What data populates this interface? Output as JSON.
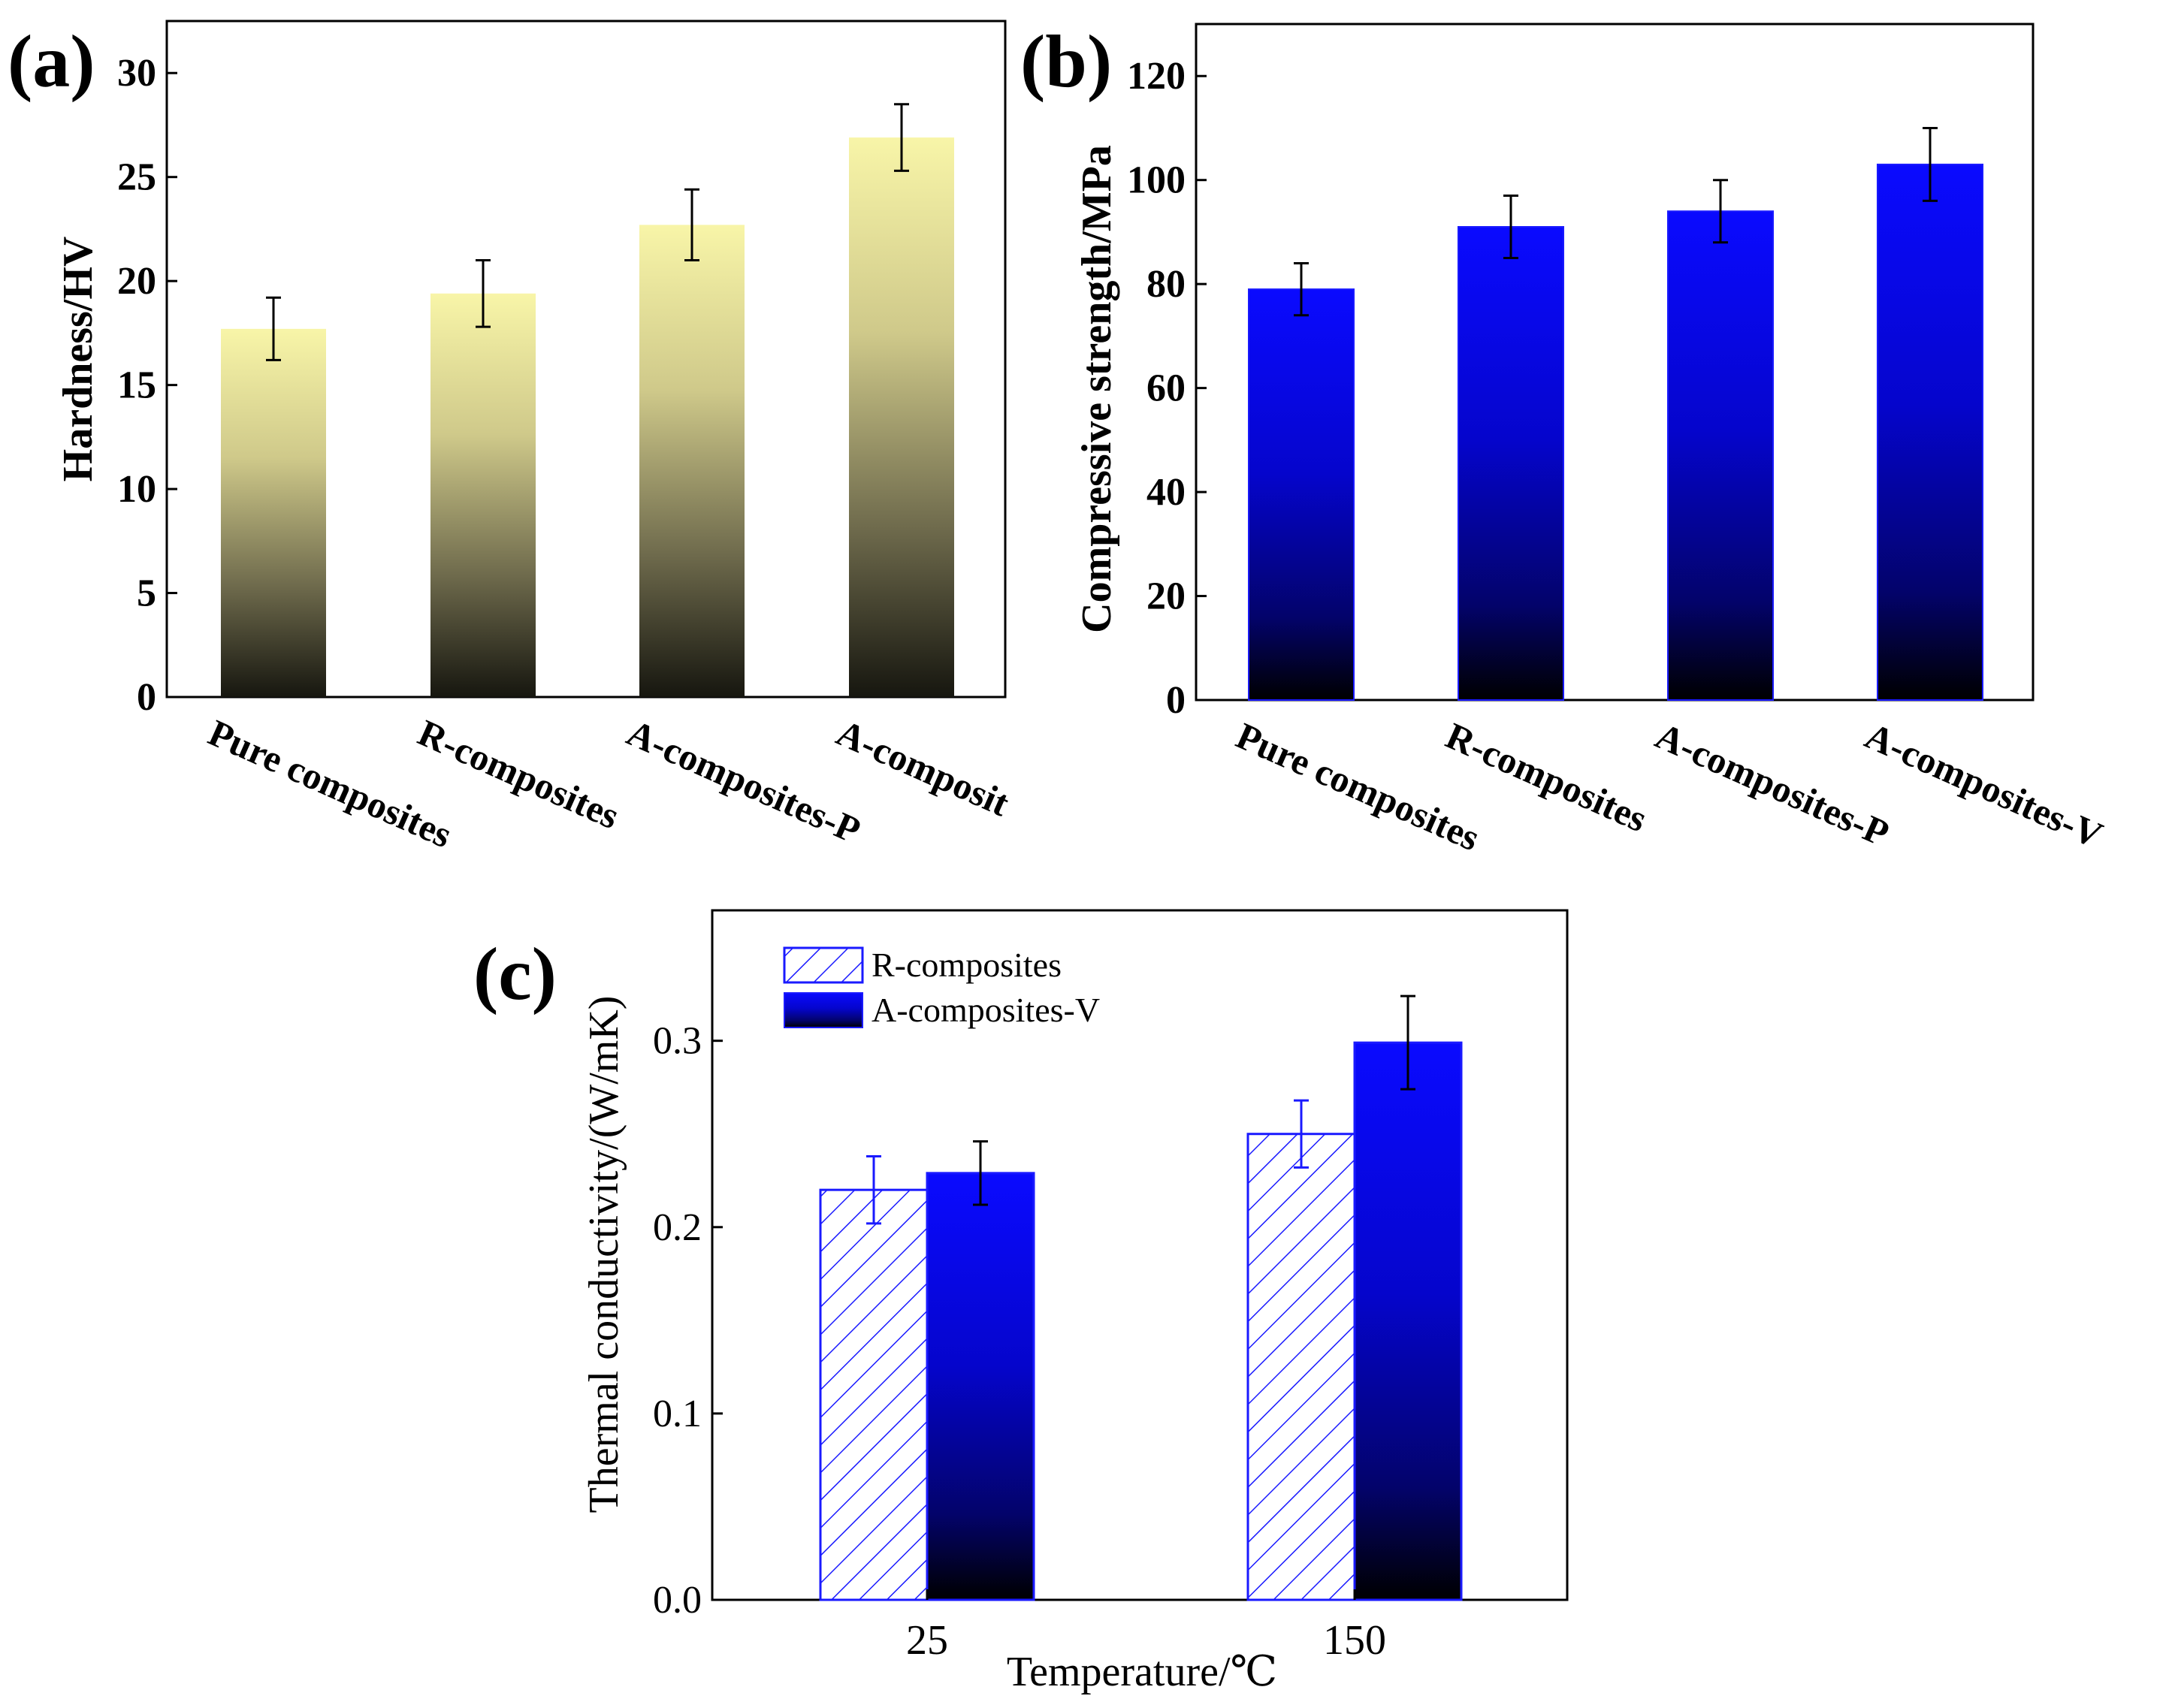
{
  "chart_data": [
    {
      "panel_label": "(a)",
      "type": "bar",
      "title": "",
      "xlabel": "",
      "ylabel": "Hardness/HV",
      "ylim": [
        0,
        32.5
      ],
      "yticks": [
        "0",
        "5",
        "10",
        "15",
        "20",
        "25",
        "30"
      ],
      "ytick_values": [
        0,
        5,
        10,
        15,
        20,
        25,
        30
      ],
      "categories": [
        "Pure composites",
        "R-composites",
        "A-composites-P",
        "A-composit"
      ],
      "values": [
        17.7,
        19.4,
        22.7,
        26.9
      ],
      "errors": [
        1.5,
        1.6,
        1.7,
        1.6
      ],
      "bar_color_top": "#f8f5a8",
      "bar_color_bottom": "#1a1a12",
      "grid": false
    },
    {
      "panel_label": "(b)",
      "type": "bar",
      "title": "",
      "xlabel": "",
      "ylabel": "Compressive strength/MPa",
      "ylim": [
        0,
        130
      ],
      "yticks": [
        "0",
        "20",
        "40",
        "60",
        "80",
        "100",
        "120"
      ],
      "ytick_values": [
        0,
        20,
        40,
        60,
        80,
        100,
        120
      ],
      "categories": [
        "Pure composites",
        "R-composites",
        "A-composites-P",
        "A-composites-V"
      ],
      "values": [
        79,
        91,
        94,
        103
      ],
      "errors": [
        5,
        6,
        6,
        7
      ],
      "bar_color_top": "#0a0aff",
      "bar_color_bottom": "#000000",
      "grid": false
    },
    {
      "panel_label": "(c)",
      "type": "bar",
      "title": "",
      "xlabel": "Temperature/℃",
      "ylabel": "Thermal conductivity/(W/mK)",
      "ylim": [
        0,
        0.37
      ],
      "yticks": [
        "0.0",
        "0.1",
        "0.2",
        "0.3"
      ],
      "ytick_values": [
        0.0,
        0.1,
        0.2,
        0.3
      ],
      "categories": [
        "25",
        "150"
      ],
      "legend_position": "top-left",
      "series": [
        {
          "name": "R-composites",
          "values": [
            0.22,
            0.25
          ],
          "errors": [
            0.018,
            0.018
          ],
          "style": "hatched",
          "color": "#1a1aff"
        },
        {
          "name": "A-composites-V",
          "values": [
            0.229,
            0.299
          ],
          "errors": [
            0.017,
            0.025
          ],
          "style": "gradient",
          "color": "#0a0aff"
        }
      ],
      "grid": false
    }
  ]
}
